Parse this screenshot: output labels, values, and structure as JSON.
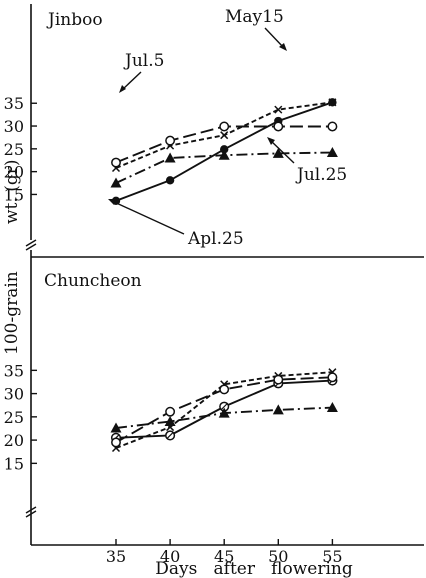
{
  "chart_data": [
    {
      "type": "line",
      "panel_label": "Jinboo",
      "x": [
        35,
        40,
        45,
        50,
        55
      ],
      "yticks": [
        15,
        20,
        25,
        30,
        35
      ],
      "ylim": [
        12,
        36
      ],
      "series": [
        {
          "name": "Apl.25",
          "marker": "filled-circle",
          "line": "solid",
          "values": [
            13.6,
            18.1,
            24.9,
            31.1,
            35.2
          ]
        },
        {
          "name": "May15",
          "marker": "x",
          "line": "dashed",
          "values": [
            20.8,
            25.7,
            28.0,
            33.6,
            35.2
          ]
        },
        {
          "name": "Jul.5",
          "marker": "open-circle",
          "line": "long-dash",
          "values": [
            22.0,
            26.8,
            29.9,
            29.9,
            29.9
          ]
        },
        {
          "name": "Jul.25",
          "marker": "filled-triangle",
          "line": "dash-dot",
          "values": [
            17.5,
            23.0,
            23.6,
            24.0,
            24.2
          ]
        }
      ]
    },
    {
      "type": "line",
      "panel_label": "Chuncheon",
      "x": [
        35,
        40,
        45,
        50,
        55
      ],
      "yticks": [
        15,
        20,
        25,
        30,
        35
      ],
      "ylim": [
        12,
        36
      ],
      "series": [
        {
          "name": "Apl.25",
          "marker": "circle-dot",
          "line": "solid",
          "values": [
            20.5,
            21.0,
            27.2,
            32.2,
            32.8
          ]
        },
        {
          "name": "May15",
          "marker": "x",
          "line": "dashed",
          "values": [
            18.3,
            22.8,
            32.0,
            33.8,
            34.6
          ]
        },
        {
          "name": "Jul.5",
          "marker": "open-circle",
          "line": "long-dash",
          "values": [
            19.5,
            26.1,
            30.9,
            33.0,
            33.5
          ]
        },
        {
          "name": "Jul.25",
          "marker": "filled-triangle",
          "line": "dash-dot",
          "values": [
            22.6,
            24.0,
            25.8,
            26.5,
            27.0
          ]
        }
      ]
    }
  ],
  "axes": {
    "ylabel_upper": "wt. (gr)",
    "ylabel_lower": "100-grain",
    "xlabel": "Days   after   flowering"
  }
}
